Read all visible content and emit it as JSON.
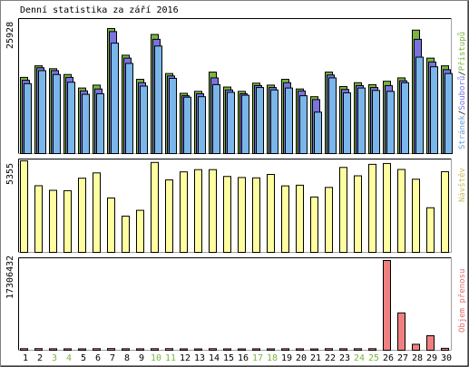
{
  "title": "Denní statistika za září 2016",
  "colors": {
    "hits": "#7ab6ea",
    "files": "#7b72e0",
    "pages": "#7ab540",
    "visits": "#fefea0",
    "volume": "#f08080",
    "label_hits": "#6aa0d8",
    "label_files": "#7b72e0",
    "label_pages": "#7ab540",
    "label_visits": "#c8c060",
    "label_volume": "#e07070",
    "weekend_day": "#7ab540"
  },
  "chart_data": [
    {
      "type": "bar",
      "panel": "top",
      "ymax_label": "25928",
      "ylim": [
        0,
        25928
      ],
      "legend": {
        "hits": "Stránek",
        "sep1": "/",
        "files": "Souborů",
        "sep2": "/",
        "pages": "Přístupů"
      },
      "categories": [
        "1",
        "2",
        "3",
        "4",
        "5",
        "6",
        "7",
        "8",
        "9",
        "10",
        "11",
        "12",
        "13",
        "14",
        "15",
        "16",
        "17",
        "18",
        "19",
        "20",
        "21",
        "22",
        "23",
        "24",
        "25",
        "26",
        "27",
        "28",
        "29",
        "30"
      ],
      "series": [
        {
          "name": "Přístupů",
          "values": [
            15800,
            18200,
            17600,
            16400,
            13600,
            14200,
            25928,
            20400,
            15400,
            24700,
            16600,
            12500,
            12900,
            16900,
            13800,
            12900,
            14600,
            14200,
            15400,
            13400,
            11800,
            16900,
            13900,
            14700,
            14300,
            15000,
            15700,
            25600,
            19800,
            18200
          ]
        },
        {
          "name": "Souborů",
          "values": [
            15200,
            17800,
            17200,
            15800,
            13000,
            13400,
            25300,
            19800,
            14700,
            23700,
            16100,
            12000,
            12400,
            15700,
            13200,
            12400,
            14100,
            13700,
            14700,
            13000,
            11200,
            16300,
            13300,
            14100,
            13700,
            14100,
            15100,
            23700,
            19000,
            17400
          ]
        },
        {
          "name": "Stránek",
          "values": [
            14500,
            17200,
            16400,
            14800,
            12300,
            12400,
            22900,
            18700,
            14000,
            22300,
            15600,
            11700,
            11800,
            14300,
            12700,
            12100,
            13700,
            13200,
            13600,
            12000,
            8600,
            15700,
            12600,
            13600,
            13100,
            12900,
            14700,
            20000,
            18000,
            16600
          ]
        }
      ]
    },
    {
      "type": "bar",
      "panel": "middle",
      "ymax_label": "5355",
      "ylim": [
        0,
        5355
      ],
      "legend": {
        "visits": "Návštěv"
      },
      "categories": [
        "1",
        "2",
        "3",
        "4",
        "5",
        "6",
        "7",
        "8",
        "9",
        "10",
        "11",
        "12",
        "13",
        "14",
        "15",
        "16",
        "17",
        "18",
        "19",
        "20",
        "21",
        "22",
        "23",
        "24",
        "25",
        "26",
        "27",
        "28",
        "29",
        "30"
      ],
      "series": [
        {
          "name": "Návštěv",
          "values": [
            5355,
            3900,
            3630,
            3610,
            4340,
            4650,
            3180,
            2120,
            2460,
            5260,
            4240,
            4710,
            4840,
            4840,
            4440,
            4380,
            4360,
            4560,
            3890,
            3930,
            3240,
            3800,
            4970,
            4480,
            5150,
            5200,
            4850,
            4280,
            2610,
            4720
          ]
        }
      ]
    },
    {
      "type": "bar",
      "panel": "bottom",
      "ymax_label": "17306432",
      "ylim": [
        0,
        17306432
      ],
      "legend": {
        "volume": "Objem přenosu"
      },
      "categories": [
        "1",
        "2",
        "3",
        "4",
        "5",
        "6",
        "7",
        "8",
        "9",
        "10",
        "11",
        "12",
        "13",
        "14",
        "15",
        "16",
        "17",
        "18",
        "19",
        "20",
        "21",
        "22",
        "23",
        "24",
        "25",
        "26",
        "27",
        "28",
        "29",
        "30"
      ],
      "series": [
        {
          "name": "Objem přenosu",
          "values": [
            300000,
            310000,
            290000,
            280000,
            270000,
            300000,
            320000,
            290000,
            280000,
            300000,
            310000,
            270000,
            260000,
            300000,
            270000,
            260000,
            280000,
            270000,
            290000,
            280000,
            260000,
            300000,
            290000,
            290000,
            300000,
            17306432,
            7200000,
            1150000,
            2800000,
            370000
          ]
        }
      ]
    }
  ],
  "weekend_days": [
    "3",
    "4",
    "10",
    "11",
    "17",
    "18",
    "24",
    "25"
  ]
}
